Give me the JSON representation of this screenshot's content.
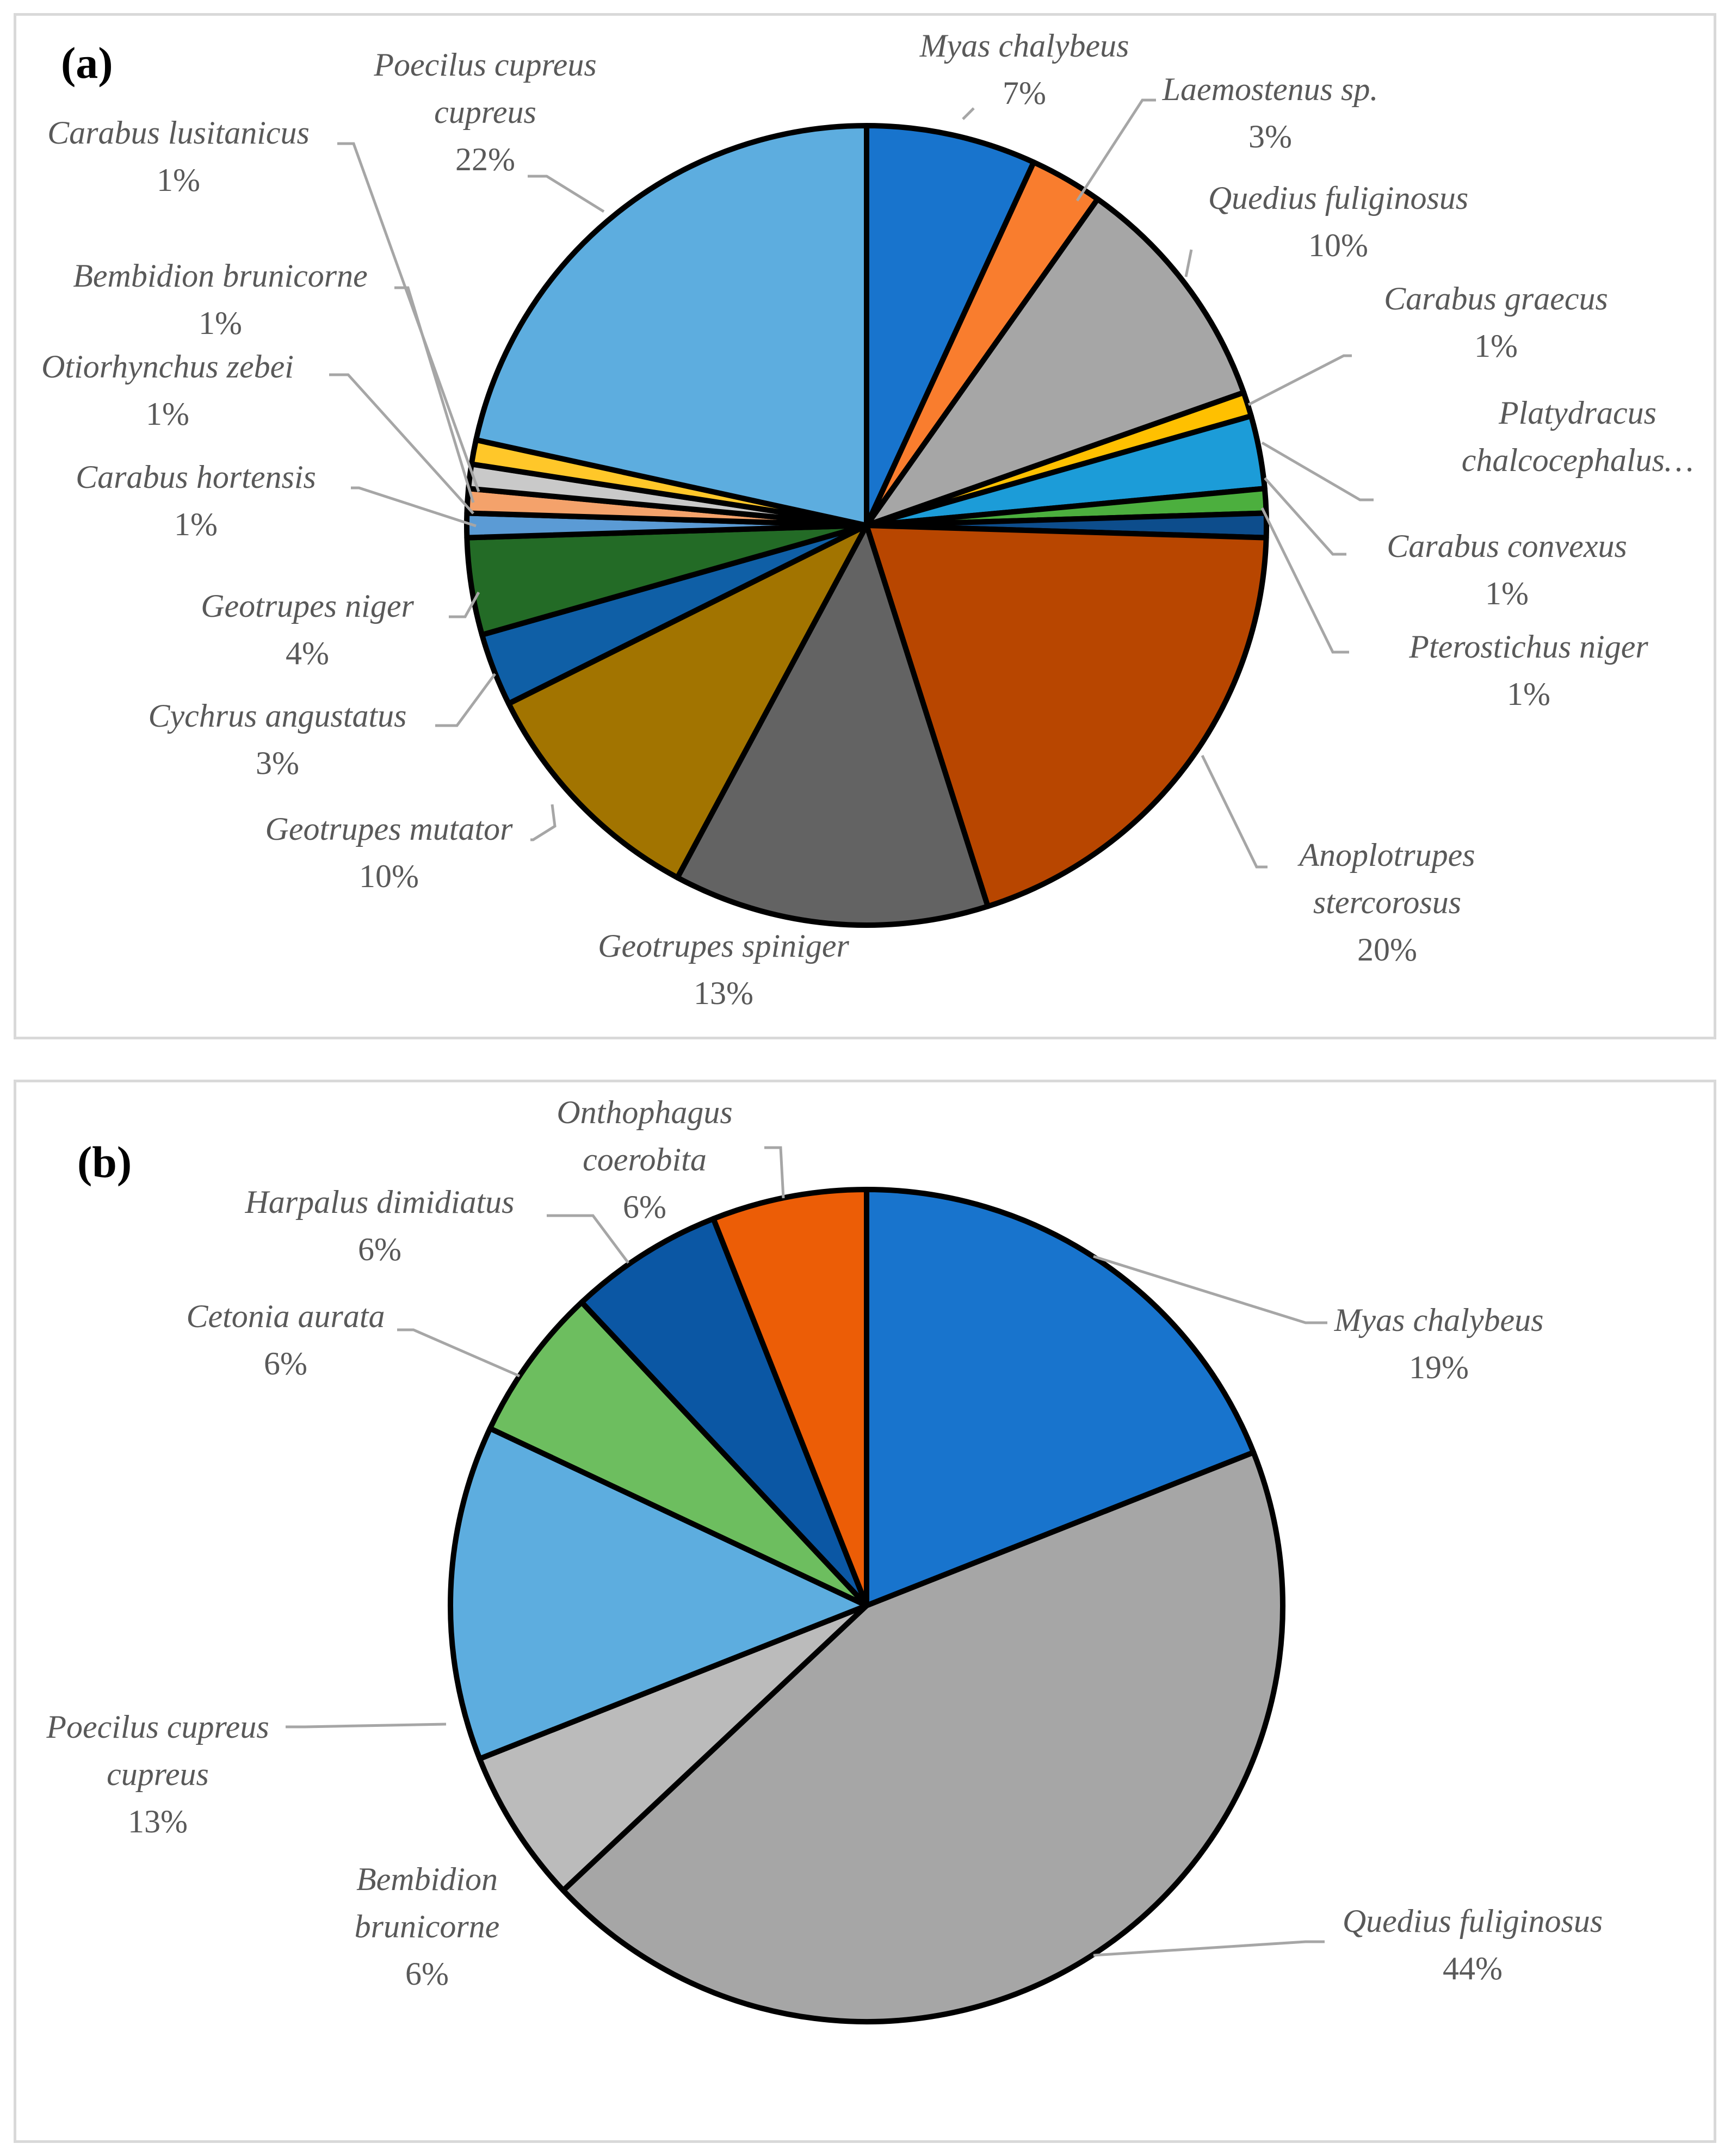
{
  "chart_data": [
    {
      "type": "pie",
      "panel_label": "(a)",
      "slices": [
        {
          "name": "Myas chalybeus",
          "label_lines": [
            "Myas chalybeus"
          ],
          "value": 7,
          "pct_label": "7%",
          "color": "#1874CD"
        },
        {
          "name": "Laemostenus sp.",
          "label_lines": [
            "Laemostenus sp."
          ],
          "value": 3,
          "pct_label": "3%",
          "color": "#F97D2E"
        },
        {
          "name": "Quedius fuliginosus",
          "label_lines": [
            "Quedius fuliginosus"
          ],
          "value": 10,
          "pct_label": "10%",
          "color": "#A6A6A6"
        },
        {
          "name": "Carabus graecus",
          "label_lines": [
            "Carabus graecus"
          ],
          "value": 1,
          "pct_label": "1%",
          "color": "#FFC000"
        },
        {
          "name": "Platydracus chalcocephalus…",
          "label_lines": [
            "Platydracus",
            "chalcocephalus…"
          ],
          "value": 3,
          "pct_label": "",
          "color": "#1C9CD8"
        },
        {
          "name": "Carabus convexus",
          "label_lines": [
            "Carabus convexus"
          ],
          "value": 1,
          "pct_label": "1%",
          "color": "#4CAF3E"
        },
        {
          "name": "Pterostichus niger",
          "label_lines": [
            "Pterostichus niger"
          ],
          "value": 1,
          "pct_label": "1%",
          "color": "#0D4D8C"
        },
        {
          "name": "Anoplotrupes stercorosus",
          "label_lines": [
            "Anoplotrupes",
            "stercorosus"
          ],
          "value": 20,
          "pct_label": "20%",
          "color": "#B84600"
        },
        {
          "name": "Geotrupes spiniger",
          "label_lines": [
            "Geotrupes spiniger"
          ],
          "value": 13,
          "pct_label": "13%",
          "color": "#636363"
        },
        {
          "name": "Geotrupes mutator",
          "label_lines": [
            "Geotrupes mutator"
          ],
          "value": 10,
          "pct_label": "10%",
          "color": "#A27400"
        },
        {
          "name": "Cychrus angustatus",
          "label_lines": [
            "Cychrus angustatus"
          ],
          "value": 3,
          "pct_label": "3%",
          "color": "#0F5FA6"
        },
        {
          "name": "Geotrupes niger",
          "label_lines": [
            "Geotrupes niger"
          ],
          "value": 4,
          "pct_label": "4%",
          "color": "#236B26"
        },
        {
          "name": "Carabus hortensis",
          "label_lines": [
            "Carabus hortensis"
          ],
          "value": 1,
          "pct_label": "1%",
          "color": "#5B9BD5"
        },
        {
          "name": "Otiorhynchus zebei",
          "label_lines": [
            "Otiorhynchus zebei"
          ],
          "value": 1,
          "pct_label": "1%",
          "color": "#F4A26B"
        },
        {
          "name": "Bembidion brunicorne",
          "label_lines": [
            "Bembidion brunicorne"
          ],
          "value": 1,
          "pct_label": "1%",
          "color": "#C9C9C9"
        },
        {
          "name": "Carabus lusitanicus",
          "label_lines": [
            "Carabus lusitanicus"
          ],
          "value": 1,
          "pct_label": "1%",
          "color": "#FFC729"
        },
        {
          "name": "Poecilus cupreus cupreus",
          "label_lines": [
            "Poecilus cupreus",
            "cupreus"
          ],
          "value": 22,
          "pct_label": "22%",
          "color": "#5DADDF"
        }
      ]
    },
    {
      "type": "pie",
      "panel_label": "(b)",
      "slices": [
        {
          "name": "Myas chalybeus",
          "label_lines": [
            "Myas chalybeus"
          ],
          "value": 19,
          "pct_label": "19%",
          "color": "#1874CD"
        },
        {
          "name": "Quedius fuliginosus",
          "label_lines": [
            "Quedius fuliginosus"
          ],
          "value": 44,
          "pct_label": "44%",
          "color": "#A6A6A6"
        },
        {
          "name": "Bembidion brunicorne",
          "label_lines": [
            "Bembidion",
            "brunicorne"
          ],
          "value": 6,
          "pct_label": "6%",
          "color": "#BBBBBB"
        },
        {
          "name": "Poecilus cupreus cupreus",
          "label_lines": [
            "Poecilus cupreus",
            "cupreus"
          ],
          "value": 13,
          "pct_label": "13%",
          "color": "#5DADDF"
        },
        {
          "name": "Cetonia aurata",
          "label_lines": [
            "Cetonia aurata"
          ],
          "value": 6,
          "pct_label": "6%",
          "color": "#6DBE5F"
        },
        {
          "name": "Harpalus dimidiatus",
          "label_lines": [
            "Harpalus dimidiatus"
          ],
          "value": 6,
          "pct_label": "6%",
          "color": "#0B57A4"
        },
        {
          "name": "Onthophagus coerobita",
          "label_lines": [
            "Onthophagus",
            "coerobita"
          ],
          "value": 6,
          "pct_label": "6%",
          "color": "#EC5D06"
        }
      ]
    }
  ]
}
